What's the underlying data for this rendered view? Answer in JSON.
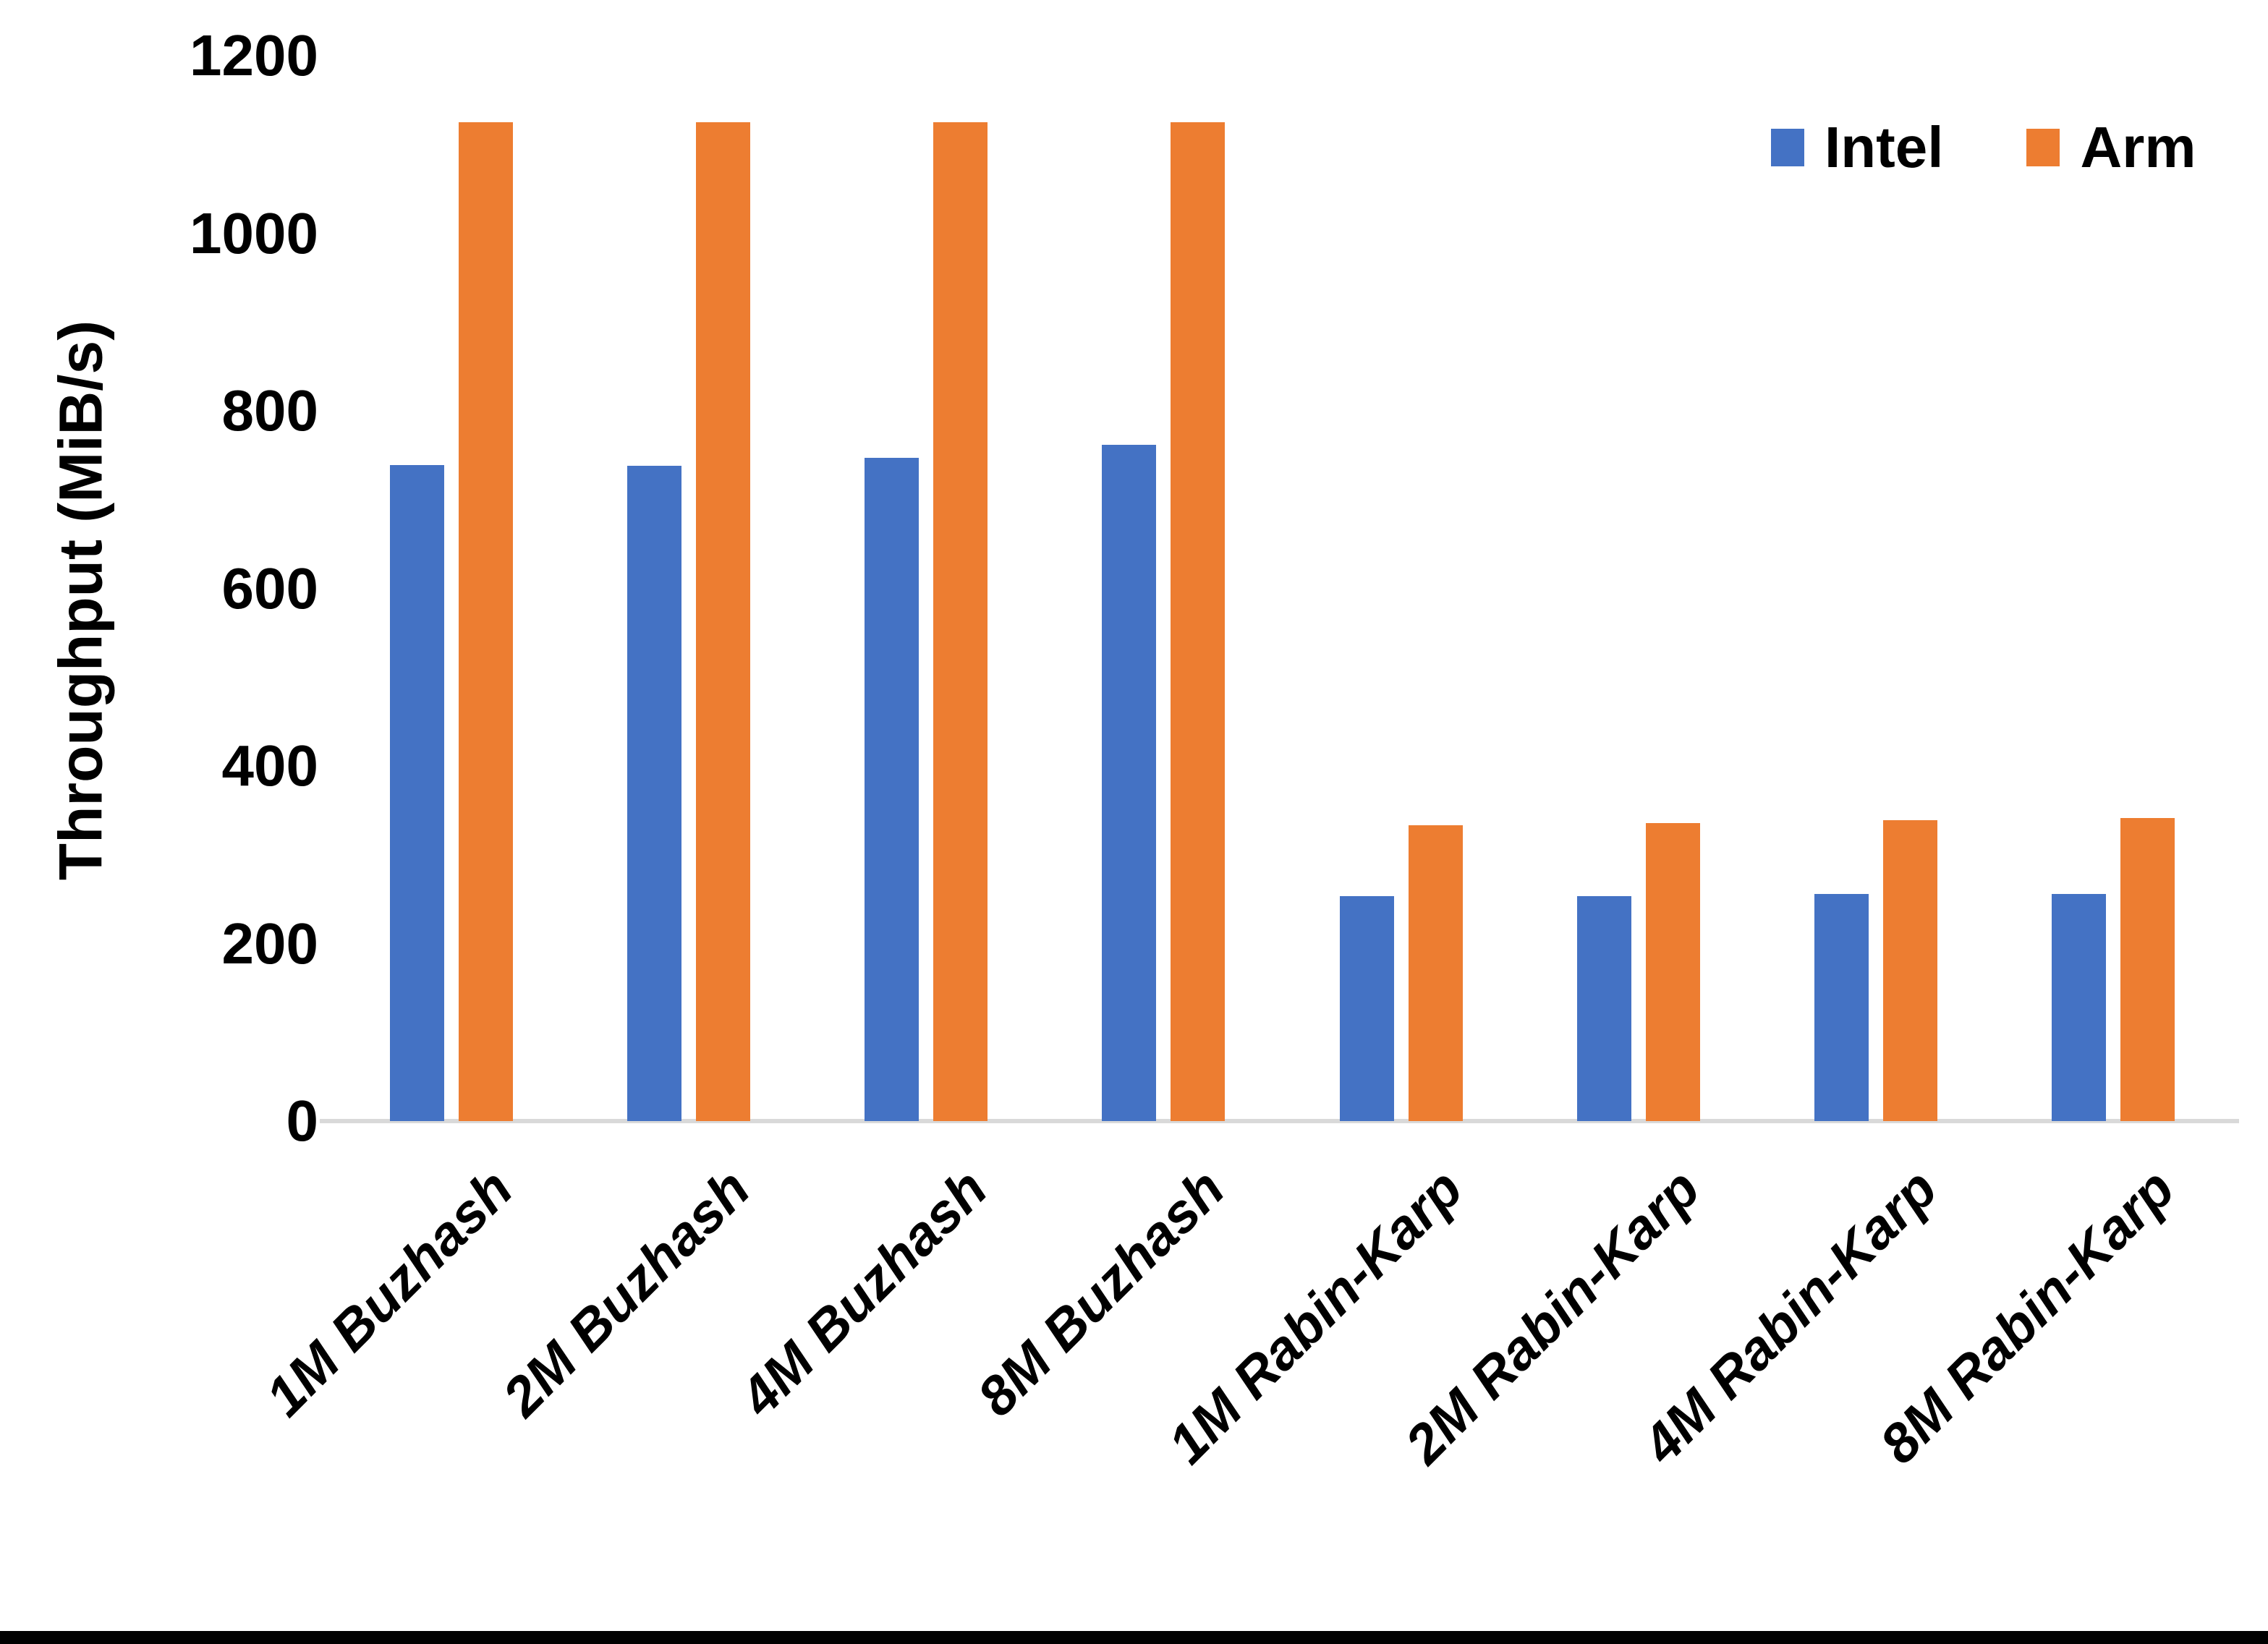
{
  "chart_data": {
    "type": "bar",
    "title": "",
    "xlabel": "",
    "ylabel": "Throughput (MiB/s)",
    "ylim": [
      0,
      1200
    ],
    "yticks": [
      0,
      200,
      400,
      600,
      800,
      1000,
      1200
    ],
    "grid": false,
    "legend_position": "top-right",
    "categories": [
      "1M Buzhash",
      "2M Buzhash",
      "4M Buzhash",
      "8M Buzhash",
      "1M Rabin-Karp",
      "2M Rabin-Karp",
      "4M Rabin-Karp",
      "8M Rabin-Karp"
    ],
    "series": [
      {
        "name": "Intel",
        "color": "#4472C4",
        "values": [
          739,
          738,
          747,
          762,
          253,
          253,
          256,
          256
        ]
      },
      {
        "name": "Arm",
        "color": "#ED7D31",
        "values": [
          1125,
          1125,
          1125,
          1125,
          333,
          336,
          339,
          341
        ]
      }
    ]
  },
  "colors": {
    "axis_line": "#D9D9D9",
    "text": "#000000",
    "frame_bottom": "#000000",
    "background": "#FFFFFF"
  }
}
